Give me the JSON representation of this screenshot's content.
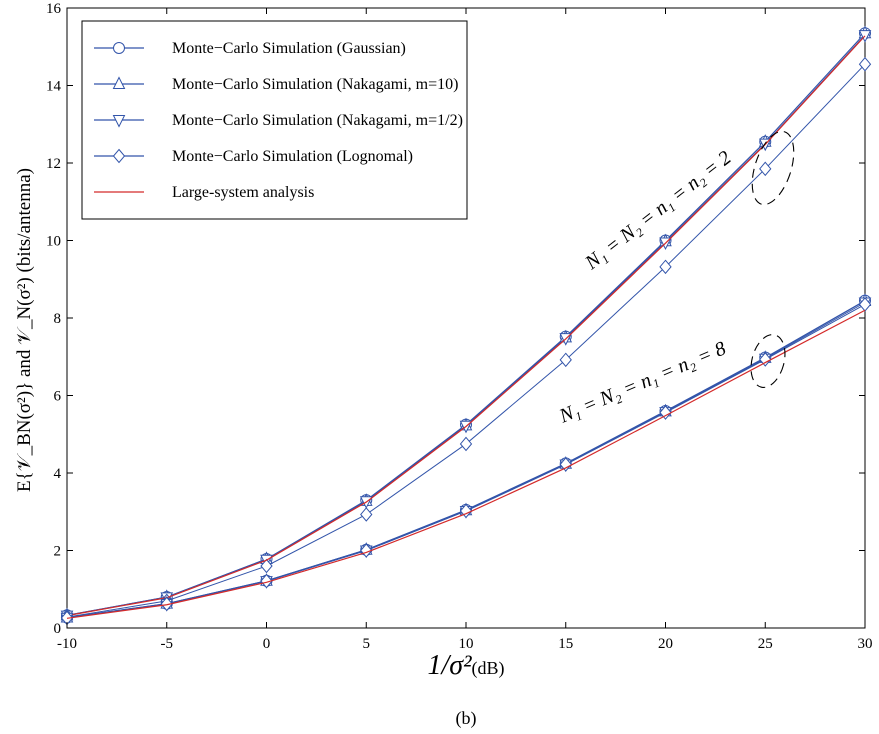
{
  "chart_data": {
    "type": "line",
    "x": [
      -10,
      -5,
      0,
      5,
      10,
      15,
      20,
      25,
      30
    ],
    "xlim": [
      -10,
      30
    ],
    "ylim": [
      0,
      16
    ],
    "xticks": [
      "-10",
      "-5",
      "0",
      "5",
      "10",
      "15",
      "20",
      "25",
      "30"
    ],
    "yticks": [
      "0",
      "2",
      "4",
      "6",
      "8",
      "10",
      "12",
      "14",
      "16"
    ],
    "xlabel": "1/σ²(dB)",
    "xlabel_main": "1/σ²",
    "xlabel_unit": "(dB)",
    "ylabel": "E{𝒱_BN(σ²)}  and  𝒱_N(σ²)    (bits/antenna)",
    "caption": "(b)",
    "grid": false,
    "legend_position": "top-left",
    "annotations": [
      {
        "text": "N₁ = N₂ = n₁ = n₂ = 2",
        "group": "upper"
      },
      {
        "text": "N₁ = N₂ = n₁ = n₂ = 8",
        "group": "lower"
      }
    ],
    "series": [
      {
        "name": "Monte−Carlo Simulation (Gaussian)",
        "marker": "circle",
        "color": "#3355aa",
        "group": "upper",
        "values": [
          0.33,
          0.8,
          1.78,
          3.3,
          5.25,
          7.52,
          10.0,
          12.55,
          15.35
        ]
      },
      {
        "name": "Monte−Carlo Simulation (Nakagami, m=10)",
        "marker": "triangle-up",
        "color": "#3355aa",
        "group": "upper",
        "values": [
          0.33,
          0.8,
          1.78,
          3.28,
          5.23,
          7.5,
          9.98,
          12.55,
          15.35
        ]
      },
      {
        "name": "Monte−Carlo Simulation (Nakagami, m=1/2)",
        "marker": "triangle-down",
        "color": "#3355aa",
        "group": "upper",
        "values": [
          0.32,
          0.79,
          1.76,
          3.27,
          5.22,
          7.48,
          9.95,
          12.5,
          15.3
        ]
      },
      {
        "name": "Monte−Carlo Simulation (Lognomal)",
        "marker": "diamond",
        "color": "#3355aa",
        "group": "upper",
        "values": [
          0.28,
          0.7,
          1.6,
          2.93,
          4.75,
          6.92,
          9.32,
          11.85,
          14.55
        ]
      },
      {
        "name": "Large-system analysis",
        "marker": "none",
        "color": "#d42a2a",
        "group": "upper",
        "values": [
          0.32,
          0.78,
          1.75,
          3.25,
          5.2,
          7.46,
          9.93,
          12.48,
          15.28
        ]
      },
      {
        "name": "",
        "marker": "circle",
        "color": "#3355aa",
        "group": "lower",
        "values": [
          0.27,
          0.63,
          1.22,
          2.02,
          3.05,
          4.25,
          5.6,
          6.98,
          8.45
        ]
      },
      {
        "name": "",
        "marker": "triangle-up",
        "color": "#3355aa",
        "group": "lower",
        "values": [
          0.27,
          0.63,
          1.22,
          2.02,
          3.04,
          4.24,
          5.59,
          6.97,
          8.44
        ]
      },
      {
        "name": "",
        "marker": "triangle-down",
        "color": "#3355aa",
        "group": "lower",
        "values": [
          0.26,
          0.62,
          1.21,
          2.0,
          3.02,
          4.22,
          5.57,
          6.95,
          8.4
        ]
      },
      {
        "name": "",
        "marker": "diamond",
        "color": "#3355aa",
        "group": "lower",
        "values": [
          0.26,
          0.62,
          1.21,
          2.0,
          3.02,
          4.22,
          5.56,
          6.93,
          8.35
        ]
      },
      {
        "name": "",
        "marker": "none",
        "color": "#d42a2a",
        "group": "lower",
        "values": [
          0.25,
          0.6,
          1.18,
          1.95,
          2.95,
          4.13,
          5.48,
          6.85,
          8.2
        ]
      }
    ]
  }
}
